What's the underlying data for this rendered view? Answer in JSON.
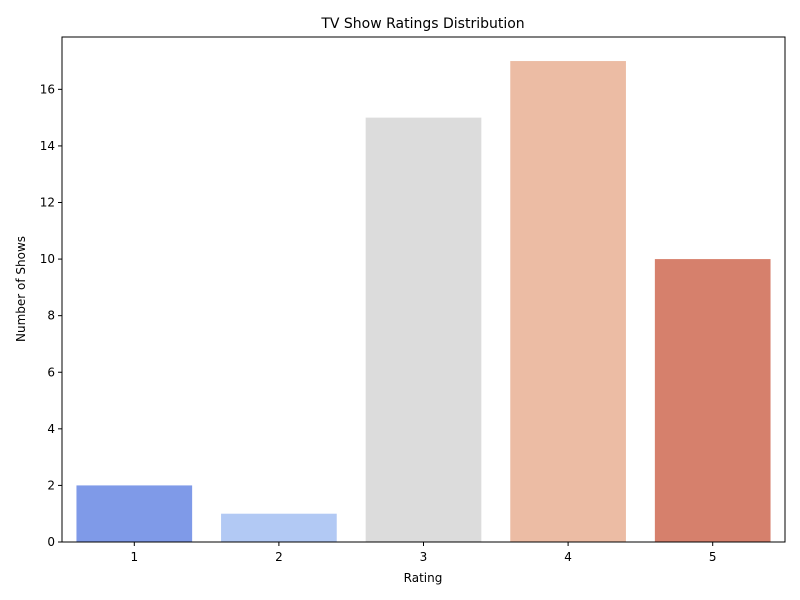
{
  "chart_data": {
    "type": "bar",
    "title": "TV Show Ratings Distribution",
    "xlabel": "Rating",
    "ylabel": "Number of Shows",
    "categories": [
      "1",
      "2",
      "3",
      "4",
      "5"
    ],
    "values": [
      2,
      1,
      15,
      17,
      10
    ],
    "colors": [
      "#7f9ae8",
      "#b2c9f4",
      "#dcdcdc",
      "#ecbca4",
      "#d6806c"
    ],
    "ylim": [
      0,
      17.85
    ],
    "yticks": [
      0,
      2,
      4,
      6,
      8,
      10,
      12,
      14,
      16
    ],
    "grid": false,
    "legend": "none"
  }
}
